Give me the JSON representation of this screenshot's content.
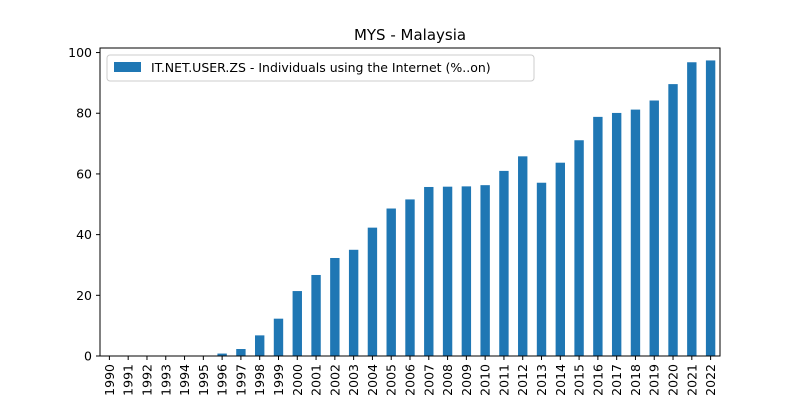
{
  "chart_data": {
    "type": "bar",
    "title": "MYS - Malaysia",
    "xlabel": "",
    "ylabel": "",
    "categories": [
      "1990",
      "1991",
      "1992",
      "1993",
      "1994",
      "1995",
      "1996",
      "1997",
      "1998",
      "1999",
      "2000",
      "2001",
      "2002",
      "2003",
      "2004",
      "2005",
      "2006",
      "2007",
      "2008",
      "2009",
      "2010",
      "2011",
      "2012",
      "2013",
      "2014",
      "2015",
      "2016",
      "2017",
      "2018",
      "2019",
      "2020",
      "2021",
      "2022"
    ],
    "series": [
      {
        "name": "IT.NET.USER.ZS - Individuals using the Internet (%..on)",
        "color": "#1f77b4",
        "values": [
          0,
          0,
          0,
          0,
          0.1,
          0.1,
          0.8,
          2.3,
          6.8,
          12.3,
          21.4,
          26.7,
          32.3,
          35.0,
          42.3,
          48.6,
          51.6,
          55.7,
          55.8,
          55.9,
          56.3,
          61.0,
          65.8,
          57.1,
          63.7,
          71.1,
          78.8,
          80.1,
          81.2,
          84.2,
          89.6,
          96.8,
          97.4
        ]
      }
    ],
    "ylim": [
      0,
      101.5
    ],
    "yticks": [
      0,
      20,
      40,
      60,
      80,
      100
    ],
    "grid": false,
    "legend_position": "top-left"
  }
}
